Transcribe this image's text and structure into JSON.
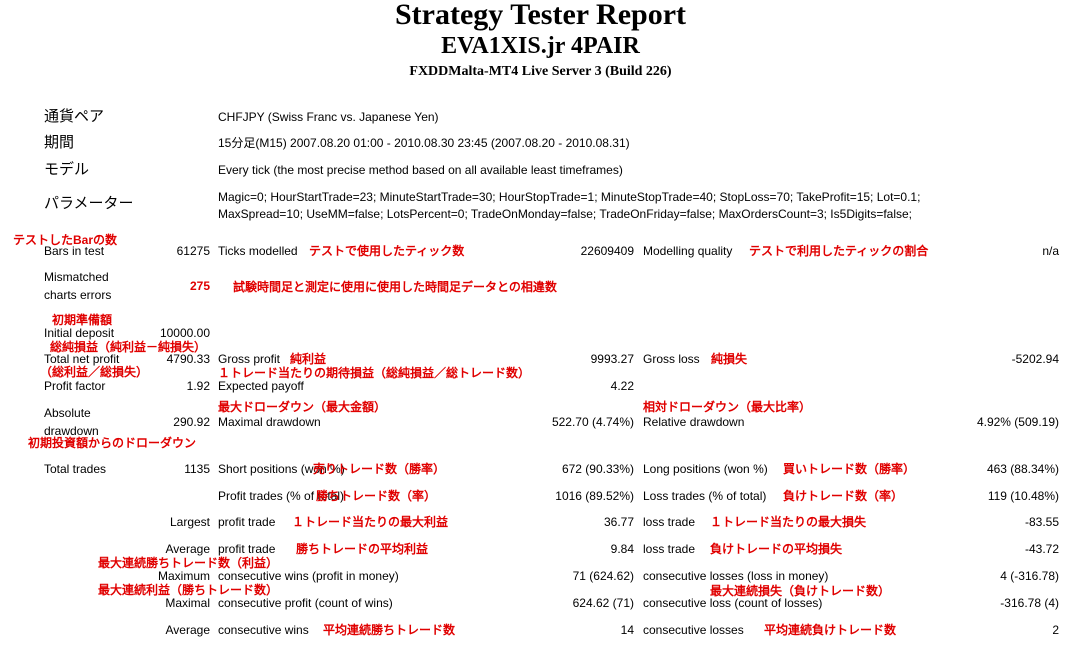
{
  "header": {
    "title": "Strategy Tester Report",
    "expert": "EVA1XIS.jr 4PAIR",
    "server": "FXDDMalta-MT4 Live Server 3 (Build 226)"
  },
  "info": {
    "symbol_label": "通貨ペア",
    "symbol": "CHFJPY (Swiss Franc vs. Japanese Yen)",
    "period_label": "期間",
    "period": "15分足(M15) 2007.08.20 01:00 - 2010.08.30 23:45 (2007.08.20 - 2010.08.31)",
    "model_label": "モデル",
    "model": "Every tick (the most precise method based on all available least timeframes)",
    "params_label": "パラメーター",
    "params_line1": "Magic=0; HourStartTrade=23; MinuteStartTrade=30; HourStopTrade=1; MinuteStopTrade=40; StopLoss=70; TakeProfit=15; Lot=0.1;",
    "params_line2": "MaxSpread=10; UseMM=false; LotsPercent=0; TradeOnMonday=false; TradeOnFriday=false; MaxOrdersCount=3; Is5Digits=false;"
  },
  "stats": {
    "bars_label": "Bars in test",
    "bars": "61275",
    "ticks_label": "Ticks modelled",
    "ticks": "22609409",
    "quality_label": "Modelling quality",
    "quality": "n/a",
    "mismatch_label1": "Mismatched",
    "mismatch_label2": "charts errors",
    "mismatch": "275",
    "deposit_label": "Initial deposit",
    "deposit": "10000.00",
    "net_label": "Total net profit",
    "net": "4790.33",
    "gross_profit_label": "Gross profit",
    "gross_profit": "9993.27",
    "gross_loss_label": "Gross loss",
    "gross_loss": "-5202.94",
    "pf_label": "Profit factor",
    "pf": "1.92",
    "payoff_label": "Expected payoff",
    "payoff": "4.22",
    "abs_dd_label1": "Absolute",
    "abs_dd_label2": "drawdown",
    "abs_dd": "290.92",
    "max_dd_label": "Maximal drawdown",
    "max_dd": "522.70 (4.74%)",
    "rel_dd_label": "Relative drawdown",
    "rel_dd": "4.92% (509.19)",
    "total_trades_label": "Total trades",
    "total_trades": "1135",
    "short_label": "Short positions (won %)",
    "short": "672 (90.33%)",
    "long_label": "Long positions (won %)",
    "long": "463 (88.34%)",
    "profit_trades_label": "Profit trades (% of total)",
    "profit_trades": "1016 (89.52%)",
    "loss_trades_label": "Loss trades (% of total)",
    "loss_trades": "119 (10.48%)",
    "largest_label": "Largest",
    "largest_profit_label": "profit trade",
    "largest_profit": "36.77",
    "largest_loss_label": "loss trade",
    "largest_loss": "-83.55",
    "average_label": "Average",
    "avg_profit_label": "profit trade",
    "avg_profit": "9.84",
    "avg_loss_label": "loss trade",
    "avg_loss": "-43.72",
    "maximum_label": "Maximum",
    "max_wins_label": "consecutive wins (profit in money)",
    "max_wins": "71 (624.62)",
    "max_losses_label": "consecutive losses (loss in money)",
    "max_losses": "4 (-316.78)",
    "maximal_label": "Maximal",
    "maximal_profit_label": "consecutive profit (count of wins)",
    "maximal_profit": "624.62 (71)",
    "maximal_loss_label": "consecutive loss (count of losses)",
    "maximal_loss": "-316.78 (4)",
    "average2_label": "Average",
    "avg_wins_label": "consecutive wins",
    "avg_wins": "14",
    "avg_losses_label": "consecutive losses",
    "avg_losses": "2"
  },
  "annotations": {
    "bars": "テストしたBarの数",
    "ticks": "テストで使用したティック数",
    "quality": "テストで利用したティックの割合",
    "mismatch": "試験時間足と測定に使用に使用した時間足データとの相違数",
    "deposit": "初期準備額",
    "net": "総純損益（純利益－純損失）",
    "gross_profit": "純利益",
    "gross_loss": "純損失",
    "pf": "（総利益／総損失）",
    "payoff": "１トレード当たりの期待損益（総純損益／総トレード数）",
    "max_dd": "最大ドローダウン（最大金額）",
    "rel_dd": "相対ドローダウン（最大比率）",
    "abs_dd": "初期投資額からのドローダウン",
    "short": "売りトレード数（勝率）",
    "long": "買いトレード数（勝率）",
    "profit_trades": "勝ちトレード数（率）",
    "loss_trades": "負けトレード数（率）",
    "largest_profit": "１トレード当たりの最大利益",
    "largest_loss": "１トレード当たりの最大損失",
    "avg_profit": "勝ちトレードの平均利益",
    "avg_loss": "負けトレードの平均損失",
    "max_wins": "最大連続勝ちトレード数（利益）",
    "maximal_profit": "最大連続利益（勝ちトレード数）",
    "maximal_loss": "最大連続損失（負けトレード数）",
    "avg_wins": "平均連続勝ちトレード数",
    "avg_losses": "平均連続負けトレード数"
  },
  "colors": {
    "annotation": "#e00000",
    "text": "#000000",
    "background": "#ffffff"
  }
}
